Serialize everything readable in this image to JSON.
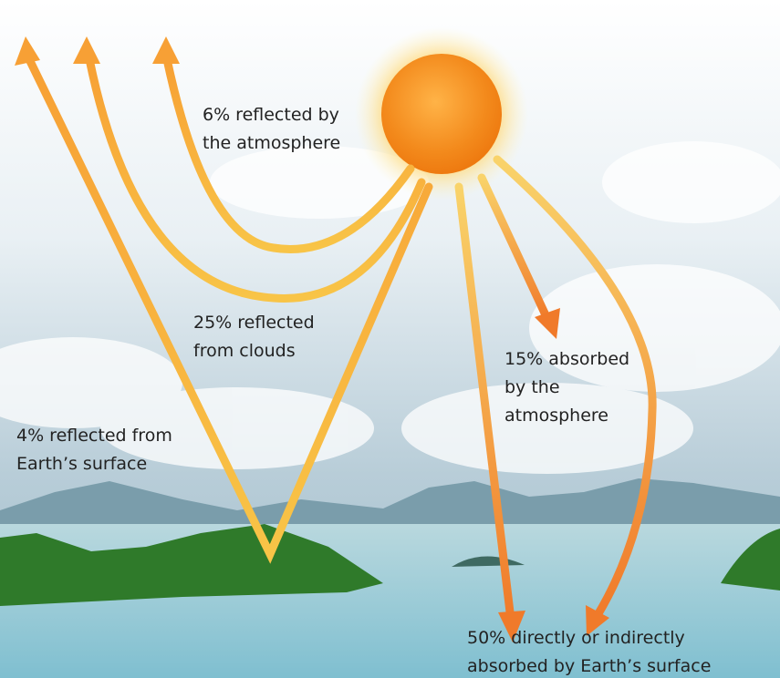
{
  "labels": [
    {
      "lines": [
        "6% reflected by",
        "the atmosphere"
      ]
    },
    {
      "lines": [
        "25% reflected",
        "from clouds"
      ]
    },
    {
      "lines": [
        "15% absorbed",
        "by the",
        "atmosphere"
      ]
    },
    {
      "lines": [
        "4% reflected from",
        "Earth’s surface"
      ]
    },
    {
      "lines": [
        "50% directly or indirectly",
        "absorbed by Earth’s surface"
      ]
    }
  ]
}
